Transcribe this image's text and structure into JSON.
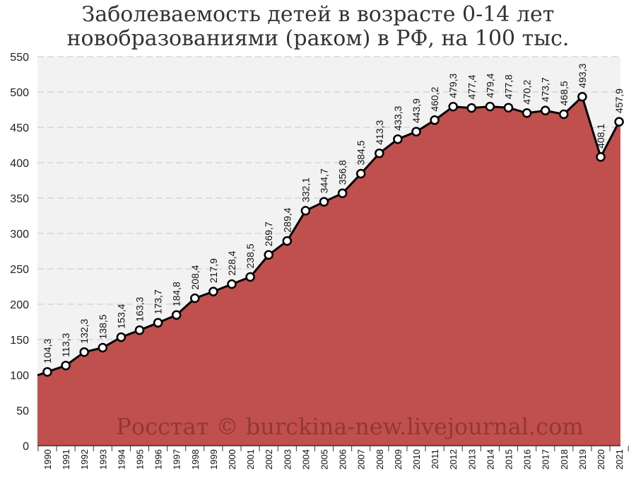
{
  "chart_data": {
    "type": "area",
    "title_lines": [
      "Заболеваемость детей в возрасте 0-14 лет",
      "новобразованиями (раком) в РФ, на 100 тыс."
    ],
    "x": [
      "1990",
      "1991",
      "1992",
      "1993",
      "1994",
      "1995",
      "1996",
      "1997",
      "1998",
      "1999",
      "2000",
      "2001",
      "2002",
      "2003",
      "2004",
      "2005",
      "2006",
      "2007",
      "2008",
      "2009",
      "2010",
      "2011",
      "2012",
      "2013",
      "2014",
      "2015",
      "2016",
      "2017",
      "2018",
      "2019",
      "2020",
      "2021"
    ],
    "values": [
      104.3,
      113.3,
      132.3,
      138.5,
      153.4,
      163.3,
      173.7,
      184.8,
      208.4,
      217.9,
      228.4,
      238.5,
      269.7,
      289.4,
      332.1,
      344.7,
      356.8,
      384.5,
      413.3,
      433.3,
      443.9,
      460.2,
      479.3,
      477.4,
      479.4,
      477.8,
      470.2,
      473.7,
      468.5,
      493.3,
      408.1,
      457.9
    ],
    "data_labels": [
      "104,3",
      "113,3",
      "132,3",
      "138,5",
      "153,4",
      "163,3",
      "173,7",
      "184,8",
      "208,4",
      "217,9",
      "228,4",
      "238,5",
      "269,7",
      "289,4",
      "332,1",
      "344,7",
      "356,8",
      "384,5",
      "413,3",
      "433,3",
      "443,9",
      "460,2",
      "479,3",
      "477,4",
      "479,4",
      "477,8",
      "470,2",
      "473,7",
      "468,5",
      "493,3",
      "408,1",
      "457,9"
    ],
    "ylim": [
      0,
      550
    ],
    "yticks": [
      0,
      50,
      100,
      150,
      200,
      250,
      300,
      350,
      400,
      450,
      500,
      550
    ],
    "grid": true,
    "watermark": "Росстат © burckina-new.livejournal.com",
    "colors": {
      "area": "#c0504d",
      "line": "#000000",
      "marker_fill": "#ffffff",
      "plot_bg": "#f2f2f2",
      "grid": "#c8c8c8",
      "watermark": "#8c3533",
      "title": "#333333"
    }
  }
}
